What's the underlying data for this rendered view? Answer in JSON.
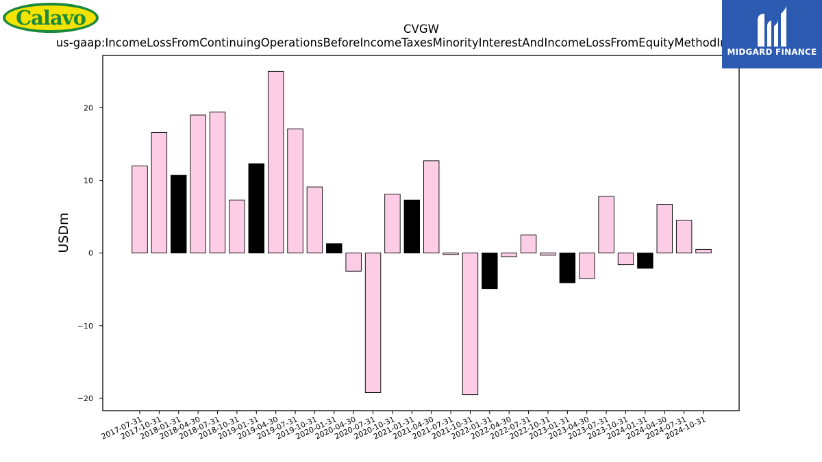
{
  "logos": {
    "left_word": "Calavo",
    "right_word": "MIDGARD FINANCE"
  },
  "chart_data": {
    "type": "bar",
    "title": "CVGW",
    "subtitle": "us-gaap:IncomeLossFromContinuingOperationsBeforeIncomeTaxesMinorityInterestAndIncomeLossFromEquityMethodInvestments",
    "xlabel": "",
    "ylabel": "USDm",
    "ylim": [
      -21.7,
      27.2
    ],
    "yticks": [
      -20,
      -10,
      0,
      10,
      20
    ],
    "ytick_labels": [
      "−20",
      "−10",
      "0",
      "10",
      "20"
    ],
    "grid": false,
    "legend": "none",
    "categories": [
      "2017-07-31",
      "2017-10-31",
      "2018-01-31",
      "2018-04-30",
      "2018-07-31",
      "2018-10-31",
      "2019-01-31",
      "2019-04-30",
      "2019-07-31",
      "2019-10-31",
      "2020-01-31",
      "2020-04-30",
      "2020-07-31",
      "2020-10-31",
      "2021-01-31",
      "2021-04-30",
      "2021-07-31",
      "2021-10-31",
      "2022-01-31",
      "2022-04-30",
      "2022-07-31",
      "2022-10-31",
      "2023-01-31",
      "2023-04-30",
      "2023-07-31",
      "2023-10-31",
      "2024-01-31",
      "2024-04-30",
      "2024-07-31",
      "2024-10-31"
    ],
    "values": [
      12.0,
      16.6,
      10.7,
      19.0,
      19.4,
      7.3,
      12.3,
      25.0,
      17.1,
      9.1,
      1.3,
      -2.5,
      -19.2,
      8.1,
      7.3,
      12.7,
      -0.2,
      -19.5,
      -4.9,
      -0.5,
      2.5,
      -0.3,
      -4.1,
      -3.5,
      7.8,
      -1.6,
      -2.1,
      6.7,
      4.5,
      0.5
    ],
    "highlight_categories": [
      "2018-01-31",
      "2019-01-31",
      "2020-01-31",
      "2021-01-31",
      "2022-01-31",
      "2023-01-31",
      "2024-01-31"
    ],
    "colors": {
      "bar": "#fccde5",
      "highlight": "#000000",
      "edge": "#000000"
    }
  }
}
